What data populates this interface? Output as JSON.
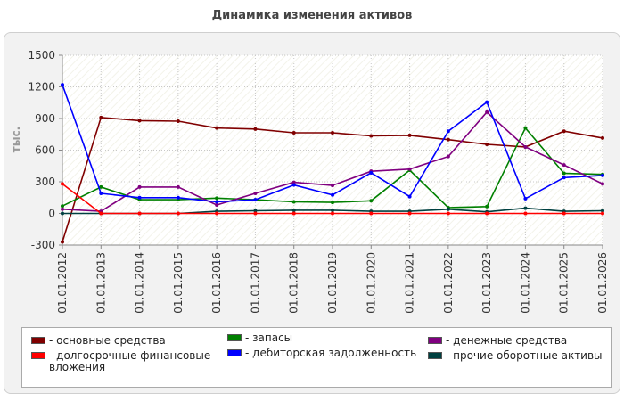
{
  "chart_data": {
    "type": "line",
    "title": "Динамика изменения активов",
    "ylabel": "тыс.",
    "x": [
      "01.01.2012",
      "01.01.2013",
      "01.01.2014",
      "01.01.2015",
      "01.01.2016",
      "01.01.2017",
      "01.01.2018",
      "01.01.2019",
      "01.01.2020",
      "01.01.2021",
      "01.01.2022",
      "01.01.2023",
      "01.01.2024",
      "01.01.2025",
      "01.01.2026"
    ],
    "ylim": [
      -300,
      1500
    ],
    "yticks": [
      -300,
      0,
      300,
      600,
      900,
      1200,
      1500
    ],
    "grid": true,
    "legend_position": "bottom",
    "series": [
      {
        "name": "- основные средства",
        "color": "#800000",
        "values": [
          -270,
          910,
          880,
          875,
          810,
          800,
          765,
          765,
          735,
          740,
          700,
          655,
          630,
          780,
          715
        ]
      },
      {
        "name": "- запасы",
        "color": "#008000",
        "values": [
          70,
          250,
          130,
          130,
          145,
          130,
          110,
          105,
          120,
          410,
          55,
          65,
          810,
          380,
          370
        ]
      },
      {
        "name": "- денежные средства",
        "color": "#800080",
        "values": [
          40,
          20,
          250,
          250,
          80,
          190,
          295,
          265,
          400,
          420,
          540,
          960,
          630,
          460,
          280
        ]
      },
      {
        "name": "- долгосрочные финансовые вложения",
        "color": "#ff0000",
        "values": [
          280,
          0,
          0,
          0,
          0,
          0,
          0,
          0,
          0,
          0,
          0,
          0,
          0,
          0,
          0
        ]
      },
      {
        "name": "- дебиторская задолженность",
        "color": "#0000ff",
        "values": [
          1220,
          190,
          150,
          150,
          110,
          130,
          270,
          175,
          385,
          160,
          780,
          1055,
          140,
          340,
          360
        ]
      },
      {
        "name": "- прочие оборотные активы",
        "color": "#004040",
        "values": [
          0,
          0,
          0,
          0,
          20,
          25,
          30,
          30,
          20,
          20,
          40,
          15,
          50,
          20,
          25
        ]
      }
    ]
  }
}
